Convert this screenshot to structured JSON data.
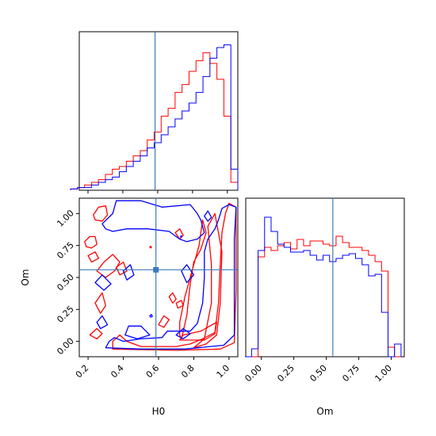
{
  "colors": {
    "series_a": "#ff0000",
    "series_b": "#0000ff",
    "truth": "#3b7bbf",
    "frame": "#000000"
  },
  "chart_data": [
    {
      "type": "histogram",
      "panel": "H0-marginal",
      "x": [
        0.12,
        0.16,
        0.2,
        0.24,
        0.28,
        0.32,
        0.36,
        0.4,
        0.44,
        0.48,
        0.52,
        0.56,
        0.6,
        0.64,
        0.68,
        0.72,
        0.76,
        0.8,
        0.84,
        0.88,
        0.92,
        0.96,
        1.0,
        1.04
      ],
      "series": [
        {
          "values": [
            0.5,
            1,
            2,
            3,
            4,
            6,
            8,
            9,
            11,
            13,
            15,
            19,
            22,
            28,
            31,
            37,
            40,
            45,
            49,
            52,
            48,
            42,
            28,
            3
          ]
        },
        {
          "values": [
            0.5,
            1,
            1,
            2,
            3,
            4,
            5,
            7,
            9,
            11,
            13,
            16,
            18,
            21,
            24,
            27,
            30,
            33,
            37,
            43,
            50,
            54,
            55,
            8
          ]
        }
      ],
      "truth_x": 0.585,
      "xlim": [
        0.15,
        1.06
      ],
      "ylim": [
        0,
        60
      ],
      "grid": false
    },
    {
      "type": "histogram",
      "panel": "Om-marginal",
      "x": [
        -0.1,
        -0.05,
        0.0,
        0.05,
        0.1,
        0.15,
        0.2,
        0.25,
        0.3,
        0.35,
        0.4,
        0.45,
        0.5,
        0.55,
        0.6,
        0.65,
        0.7,
        0.75,
        0.8,
        0.85,
        0.9,
        0.95,
        1.0,
        1.05
      ],
      "series": [
        {
          "values": [
            0,
            0,
            63,
            69,
            67,
            70,
            72,
            68,
            74,
            70,
            73,
            73,
            71,
            70,
            76,
            72,
            69,
            69,
            67,
            64,
            60,
            54,
            6,
            0
          ]
        },
        {
          "values": [
            0,
            5,
            67,
            88,
            79,
            71,
            69,
            66,
            66,
            67,
            64,
            61,
            64,
            60,
            62,
            64,
            65,
            62,
            58,
            51,
            52,
            28,
            0,
            8
          ]
        }
      ],
      "truth_x": 0.55,
      "xlim": [
        -0.12,
        1.1
      ],
      "ylim": [
        0,
        100
      ],
      "xlabel": "Om",
      "xticks": [
        "0.00",
        "0.25",
        "0.50",
        "0.75",
        "1.00"
      ],
      "xtick_values": [
        0,
        0.25,
        0.5,
        0.75,
        1.0
      ],
      "grid": false
    },
    {
      "type": "contour",
      "panel": "H0-Om-joint",
      "xlabel": "H0",
      "ylabel": "Om",
      "xlim": [
        0.15,
        1.05
      ],
      "ylim": [
        -0.12,
        1.12
      ],
      "xticks": [
        "0.2",
        "0.4",
        "0.6",
        "0.8",
        "1.0"
      ],
      "xtick_values": [
        0.2,
        0.4,
        0.6,
        0.8,
        1.0
      ],
      "yticks": [
        "0.00",
        "0.25",
        "0.50",
        "0.75",
        "1.00"
      ],
      "ytick_values": [
        0,
        0.25,
        0.5,
        0.75,
        1.0
      ],
      "truth": [
        0.585,
        0.56
      ],
      "series": [
        {
          "color_key": "series_a",
          "contours": [
            [
              [
                0.34,
                -0.06
              ],
              [
                0.7,
                -0.07
              ],
              [
                0.95,
                -0.06
              ],
              [
                1.03,
                -0.01
              ],
              [
                1.04,
                0.4
              ],
              [
                1.04,
                0.8
              ],
              [
                1.04,
                1.05
              ],
              [
                1.0,
                1.08
              ],
              [
                0.98,
                1.0
              ],
              [
                0.96,
                0.85
              ],
              [
                0.95,
                0.6
              ],
              [
                0.94,
                0.3
              ],
              [
                0.92,
                0.07
              ],
              [
                0.85,
                0.02
              ],
              [
                0.78,
                -0.02
              ],
              [
                0.7,
                -0.04
              ],
              [
                0.5,
                -0.04
              ],
              [
                0.42,
                0.0
              ],
              [
                0.38,
                0.05
              ],
              [
                0.34,
                0.0
              ]
            ],
            [
              [
                0.8,
                -0.05
              ],
              [
                0.86,
                0.02
              ],
              [
                0.9,
                0.3
              ],
              [
                0.9,
                0.6
              ],
              [
                0.88,
                0.9
              ],
              [
                0.92,
                1.0
              ],
              [
                0.96,
                0.7
              ],
              [
                0.95,
                0.3
              ],
              [
                0.93,
                0.05
              ],
              [
                0.87,
                -0.02
              ]
            ],
            [
              [
                0.73,
                0.02
              ],
              [
                0.76,
                0.2
              ],
              [
                0.78,
                0.45
              ],
              [
                0.8,
                0.62
              ],
              [
                0.84,
                0.72
              ],
              [
                0.87,
                0.85
              ],
              [
                0.85,
                0.95
              ],
              [
                0.83,
                0.75
              ],
              [
                0.79,
                0.55
              ],
              [
                0.75,
                0.35
              ],
              [
                0.72,
                0.15
              ],
              [
                0.72,
                0.05
              ]
            ],
            [
              [
                0.72,
                0.01
              ],
              [
                0.86,
                0.01
              ],
              [
                0.92,
                0.06
              ],
              [
                0.93,
                0.15
              ],
              [
                0.84,
                0.08
              ],
              [
                0.74,
                0.05
              ]
            ],
            [
              [
                0.23,
                0.99
              ],
              [
                0.26,
                1.05
              ],
              [
                0.3,
                1.06
              ],
              [
                0.31,
                0.99
              ],
              [
                0.28,
                0.94
              ],
              [
                0.24,
                0.95
              ]
            ],
            [
              [
                0.18,
                0.78
              ],
              [
                0.21,
                0.82
              ],
              [
                0.24,
                0.82
              ],
              [
                0.25,
                0.76
              ],
              [
                0.22,
                0.73
              ],
              [
                0.19,
                0.74
              ]
            ],
            [
              [
                0.25,
                0.55
              ],
              [
                0.29,
                0.62
              ],
              [
                0.34,
                0.68
              ],
              [
                0.38,
                0.62
              ],
              [
                0.35,
                0.55
              ],
              [
                0.3,
                0.5
              ]
            ],
            [
              [
                0.2,
                0.67
              ],
              [
                0.24,
                0.7
              ],
              [
                0.26,
                0.65
              ],
              [
                0.22,
                0.62
              ]
            ],
            [
              [
                0.36,
                0.58
              ],
              [
                0.4,
                0.62
              ],
              [
                0.42,
                0.55
              ],
              [
                0.38,
                0.52
              ]
            ],
            [
              [
                0.24,
                0.3
              ],
              [
                0.28,
                0.38
              ],
              [
                0.3,
                0.28
              ],
              [
                0.27,
                0.22
              ]
            ],
            [
              [
                0.21,
                0.05
              ],
              [
                0.25,
                0.1
              ],
              [
                0.28,
                0.06
              ],
              [
                0.25,
                0.02
              ]
            ],
            [
              [
                0.6,
                0.13
              ],
              [
                0.63,
                0.2
              ],
              [
                0.66,
                0.17
              ],
              [
                0.63,
                0.11
              ]
            ],
            [
              [
                0.66,
                0.35
              ],
              [
                0.68,
                0.38
              ],
              [
                0.7,
                0.33
              ],
              [
                0.68,
                0.3
              ]
            ],
            [
              [
                0.695,
                0.85
              ],
              [
                0.72,
                0.88
              ],
              [
                0.74,
                0.83
              ],
              [
                0.72,
                0.8
              ]
            ],
            [
              [
                0.55,
                0.74
              ],
              [
                0.555,
                0.745
              ],
              [
                0.56,
                0.735
              ],
              [
                0.555,
                0.73
              ]
            ],
            [
              [
                0.7,
                0.3
              ],
              [
                0.73,
                0.32
              ],
              [
                0.74,
                0.28
              ],
              [
                0.71,
                0.26
              ]
            ]
          ]
        },
        {
          "color_key": "series_b",
          "contours": [
            [
              [
                0.3,
                -0.05
              ],
              [
                0.5,
                -0.06
              ],
              [
                0.75,
                -0.06
              ],
              [
                0.97,
                -0.03
              ],
              [
                1.03,
                0.05
              ],
              [
                1.03,
                0.4
              ],
              [
                1.03,
                0.8
              ],
              [
                1.04,
                1.05
              ],
              [
                1.0,
                1.07
              ],
              [
                0.96,
                1.04
              ],
              [
                0.94,
                0.95
              ],
              [
                0.92,
                0.88
              ],
              [
                0.88,
                0.8
              ],
              [
                0.86,
                0.7
              ],
              [
                0.86,
                0.5
              ],
              [
                0.85,
                0.3
              ],
              [
                0.82,
                0.14
              ],
              [
                0.78,
                0.08
              ],
              [
                0.65,
                0.08
              ],
              [
                0.62,
                0.03
              ],
              [
                0.5,
                0.02
              ],
              [
                0.4,
                0.0
              ],
              [
                0.35,
                0.03
              ],
              [
                0.32,
                0.0
              ]
            ],
            [
              [
                0.28,
                0.92
              ],
              [
                0.34,
                1.0
              ],
              [
                0.36,
                1.1
              ],
              [
                0.5,
                1.1
              ],
              [
                0.62,
                1.05
              ],
              [
                0.78,
                1.07
              ],
              [
                0.82,
                1.0
              ],
              [
                0.84,
                0.95
              ],
              [
                0.86,
                0.85
              ],
              [
                0.82,
                0.8
              ],
              [
                0.76,
                0.78
              ],
              [
                0.72,
                0.8
              ],
              [
                0.66,
                0.86
              ],
              [
                0.54,
                0.88
              ],
              [
                0.42,
                0.88
              ],
              [
                0.34,
                0.86
              ],
              [
                0.3,
                0.88
              ]
            ],
            [
              [
                0.41,
                0.05
              ],
              [
                0.43,
                0.12
              ],
              [
                0.5,
                0.12
              ],
              [
                0.55,
                0.05
              ],
              [
                0.48,
                0.02
              ]
            ],
            [
              [
                0.73,
                0.55
              ],
              [
                0.76,
                0.6
              ],
              [
                0.8,
                0.52
              ],
              [
                0.76,
                0.46
              ]
            ],
            [
              [
                0.24,
                0.46
              ],
              [
                0.28,
                0.52
              ],
              [
                0.33,
                0.45
              ],
              [
                0.29,
                0.4
              ]
            ],
            [
              [
                0.25,
                0.15
              ],
              [
                0.28,
                0.2
              ],
              [
                0.31,
                0.13
              ],
              [
                0.27,
                0.1
              ]
            ],
            [
              [
                0.4,
                0.55
              ],
              [
                0.44,
                0.6
              ],
              [
                0.46,
                0.52
              ],
              [
                0.42,
                0.48
              ]
            ],
            [
              [
                0.86,
                0.98
              ],
              [
                0.88,
                1.02
              ],
              [
                0.9,
                0.97
              ],
              [
                0.88,
                0.94
              ]
            ],
            [
              [
                0.725,
                0.82
              ],
              [
                0.728,
                0.827
              ],
              [
                0.731,
                0.821
              ],
              [
                0.728,
                0.815
              ]
            ],
            [
              [
                0.55,
                0.2
              ],
              [
                0.56,
                0.21
              ],
              [
                0.565,
                0.195
              ],
              [
                0.555,
                0.19
              ]
            ],
            [
              [
                0.7,
                0.05
              ],
              [
                0.74,
                0.1
              ],
              [
                0.78,
                0.06
              ],
              [
                0.74,
                0.02
              ]
            ]
          ]
        }
      ],
      "grid": false
    }
  ]
}
